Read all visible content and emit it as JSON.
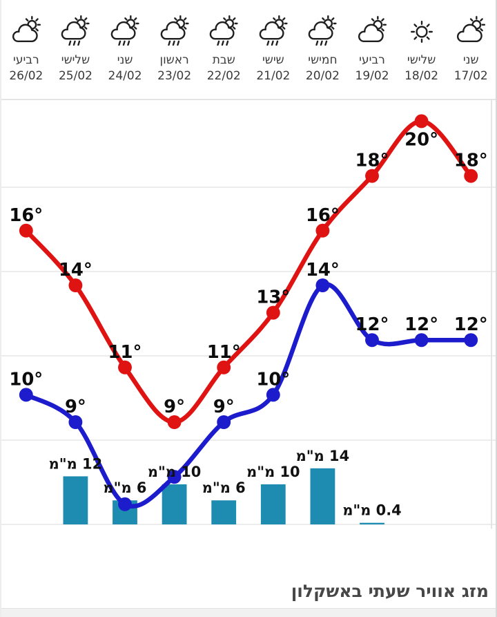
{
  "header": {
    "days": [
      {
        "day": "שני",
        "date": "17/02",
        "icon": "partly-cloudy"
      },
      {
        "day": "שלישי",
        "date": "18/02",
        "icon": "sunny"
      },
      {
        "day": "רביעי",
        "date": "19/02",
        "icon": "partly-cloudy"
      },
      {
        "day": "חמישי",
        "date": "20/02",
        "icon": "rain-sun"
      },
      {
        "day": "שישי",
        "date": "21/02",
        "icon": "rain-sun"
      },
      {
        "day": "שבת",
        "date": "22/02",
        "icon": "rain-sun"
      },
      {
        "day": "ראשון",
        "date": "23/02",
        "icon": "rain-sun"
      },
      {
        "day": "שני",
        "date": "24/02",
        "icon": "rain-sun"
      },
      {
        "day": "שלישי",
        "date": "25/02",
        "icon": "rain-sun"
      },
      {
        "day": "רביעי",
        "date": "26/02",
        "icon": "partly-cloudy"
      }
    ]
  },
  "chart_data": {
    "type": "line+bar",
    "categories": [
      "17/02",
      "18/02",
      "19/02",
      "20/02",
      "21/02",
      "22/02",
      "23/02",
      "24/02",
      "25/02",
      "26/02"
    ],
    "x_order": "right-to-left",
    "grid": true,
    "legend": "none",
    "unit": "°",
    "series": [
      {
        "name": "high-temp",
        "color": "#e01313",
        "values": [
          18,
          20,
          18,
          16,
          13,
          11,
          9,
          11,
          14,
          16
        ],
        "labels": [
          "18°",
          "20°",
          "18°",
          "16°",
          "13°",
          "11°",
          "9°",
          "11°",
          "14°",
          "16°"
        ],
        "label_below": [
          1
        ]
      },
      {
        "name": "low-temp",
        "color": "#1c1ccd",
        "values": [
          12,
          12,
          12,
          14,
          10,
          9,
          7,
          6,
          9,
          10
        ],
        "labels": [
          "12°",
          "12°",
          "12°",
          "14°",
          "10°",
          "9°",
          "",
          "",
          "9°",
          "10°"
        ],
        "label_below": []
      }
    ],
    "precipitation": {
      "name": "rain-mm",
      "color": "#1e8cb0",
      "unit": "מ\"מ",
      "values": [
        0,
        0,
        0.4,
        14,
        10,
        6,
        10,
        6,
        12,
        0
      ],
      "labels": [
        "",
        "",
        "0.4 מ\"מ",
        "14 מ\"מ",
        "10 מ\"מ",
        "6 מ\"מ",
        "10 מ\"מ",
        "6 מ\"מ",
        "12 מ\"מ",
        ""
      ]
    }
  },
  "footer": {
    "title": "מזג אוויר שעתי באשקלון"
  },
  "colors": {
    "high": "#e01313",
    "low": "#1c1ccd",
    "precip_bar": "#1e8cb0",
    "grid": "#ececec",
    "band": "#f1f1f1",
    "day_text": "#3a3a3a",
    "title_text": "#474747"
  }
}
